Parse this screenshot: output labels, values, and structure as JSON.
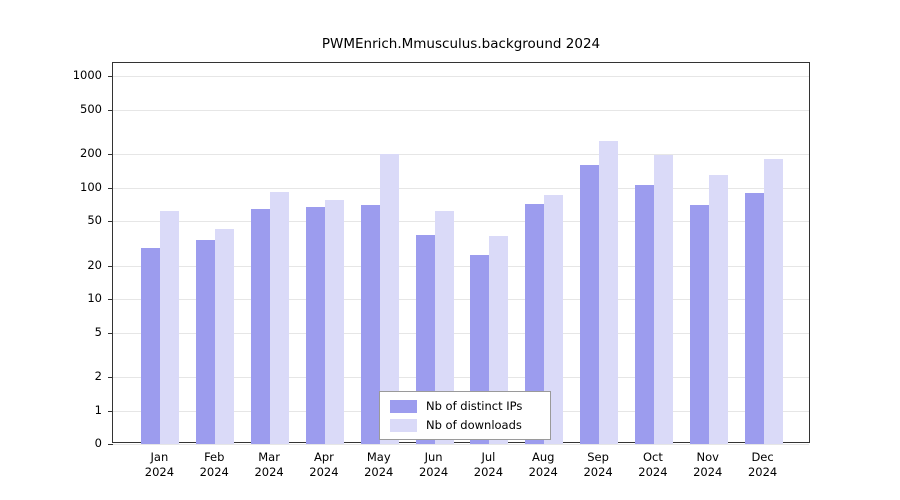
{
  "chart_data": {
    "type": "bar",
    "title": "PWMEnrich.Mmusculus.background 2024",
    "year": "2024",
    "categories": [
      "Jan",
      "Feb",
      "Mar",
      "Apr",
      "May",
      "Jun",
      "Jul",
      "Aug",
      "Sep",
      "Oct",
      "Nov",
      "Dec"
    ],
    "series": [
      {
        "name": "Nb of distinct IPs",
        "color": "#9c9cee",
        "values": [
          29,
          34,
          65,
          67,
          70,
          38,
          25,
          71,
          160,
          105,
          70,
          90
        ]
      },
      {
        "name": "Nb of downloads",
        "color": "#dadaf8",
        "values": [
          62,
          43,
          92,
          78,
          200,
          62,
          37,
          87,
          265,
          197,
          130,
          183
        ]
      }
    ],
    "yscale": "log",
    "yticks": [
      0,
      1,
      2,
      5,
      10,
      20,
      50,
      100,
      200,
      500,
      1000
    ],
    "ylim": [
      0,
      1000
    ],
    "xlabel": "",
    "ylabel": "",
    "grid": true,
    "legend_position": "bottom-center-inside",
    "colors": {
      "gridline": "#e6e6e6",
      "axis": "#333333",
      "background": "#ffffff"
    }
  }
}
